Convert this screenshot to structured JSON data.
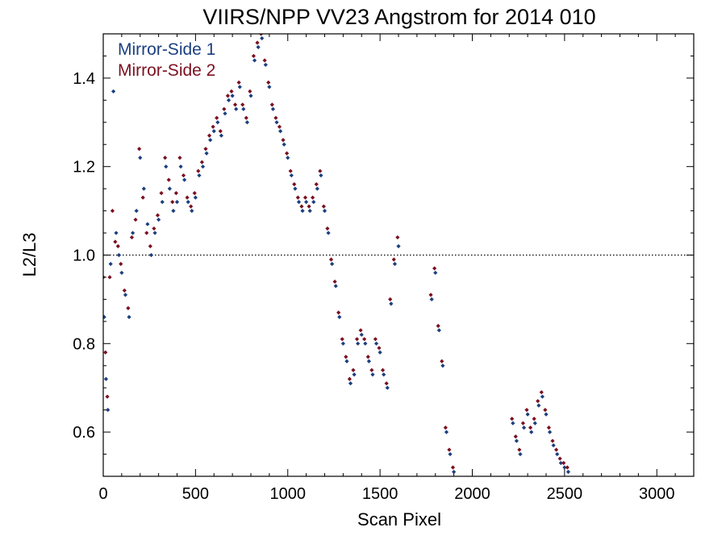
{
  "chart_data": {
    "type": "scatter",
    "title": "VIIRS/NPP VV23 Angstrom for 2014 010",
    "xlabel": "Scan Pixel",
    "ylabel": "L2/L3",
    "xlim": [
      0,
      3200
    ],
    "ylim": [
      0.5,
      1.5
    ],
    "xticks": [
      0,
      500,
      1000,
      1500,
      2000,
      2500,
      3000
    ],
    "yticks": [
      0.6,
      0.8,
      1.0,
      1.2,
      1.4
    ],
    "xtick_labels": [
      "0",
      "500",
      "1000",
      "1500",
      "2000",
      "2500",
      "3000"
    ],
    "ytick_labels": [
      "0.6",
      "0.8",
      "1.0",
      "1.2",
      "1.4"
    ],
    "reference_line": {
      "y": 1.0,
      "style": "dotted"
    },
    "grid": false,
    "legend": {
      "placement": "top-left",
      "style": "text-only"
    },
    "series": [
      {
        "name": "Mirror-Side 1",
        "color": "#1b3f7f",
        "points": [
          [
            5,
            0.86
          ],
          [
            15,
            0.72
          ],
          [
            25,
            0.65
          ],
          [
            40,
            0.98
          ],
          [
            55,
            1.37
          ],
          [
            70,
            1.05
          ],
          [
            85,
            1.0
          ],
          [
            100,
            0.96
          ],
          [
            120,
            0.91
          ],
          [
            140,
            0.86
          ],
          [
            160,
            1.05
          ],
          [
            180,
            1.1
          ],
          [
            200,
            1.22
          ],
          [
            220,
            1.15
          ],
          [
            240,
            1.07
          ],
          [
            260,
            1.0
          ],
          [
            280,
            1.05
          ],
          [
            300,
            1.08
          ],
          [
            320,
            1.12
          ],
          [
            340,
            1.2
          ],
          [
            360,
            1.15
          ],
          [
            380,
            1.1
          ],
          [
            400,
            1.12
          ],
          [
            420,
            1.2
          ],
          [
            440,
            1.17
          ],
          [
            460,
            1.12
          ],
          [
            480,
            1.1
          ],
          [
            500,
            1.13
          ],
          [
            520,
            1.18
          ],
          [
            540,
            1.2
          ],
          [
            560,
            1.23
          ],
          [
            580,
            1.26
          ],
          [
            600,
            1.28
          ],
          [
            620,
            1.3
          ],
          [
            640,
            1.27
          ],
          [
            660,
            1.32
          ],
          [
            680,
            1.35
          ],
          [
            700,
            1.36
          ],
          [
            720,
            1.33
          ],
          [
            740,
            1.38
          ],
          [
            760,
            1.33
          ],
          [
            780,
            1.3
          ],
          [
            800,
            1.36
          ],
          [
            820,
            1.44
          ],
          [
            840,
            1.47
          ],
          [
            860,
            1.49
          ],
          [
            880,
            1.43
          ],
          [
            900,
            1.38
          ],
          [
            920,
            1.33
          ],
          [
            940,
            1.3
          ],
          [
            960,
            1.28
          ],
          [
            980,
            1.25
          ],
          [
            1000,
            1.22
          ],
          [
            1020,
            1.18
          ],
          [
            1040,
            1.15
          ],
          [
            1060,
            1.12
          ],
          [
            1080,
            1.1
          ],
          [
            1100,
            1.12
          ],
          [
            1120,
            1.1
          ],
          [
            1140,
            1.12
          ],
          [
            1160,
            1.15
          ],
          [
            1180,
            1.18
          ],
          [
            1200,
            1.1
          ],
          [
            1220,
            1.05
          ],
          [
            1240,
            0.98
          ],
          [
            1260,
            0.93
          ],
          [
            1280,
            0.86
          ],
          [
            1300,
            0.8
          ],
          [
            1320,
            0.76
          ],
          [
            1340,
            0.71
          ],
          [
            1360,
            0.73
          ],
          [
            1380,
            0.8
          ],
          [
            1400,
            0.82
          ],
          [
            1420,
            0.8
          ],
          [
            1440,
            0.76
          ],
          [
            1460,
            0.73
          ],
          [
            1480,
            0.8
          ],
          [
            1500,
            0.78
          ],
          [
            1520,
            0.73
          ],
          [
            1540,
            0.7
          ],
          [
            1560,
            0.89
          ],
          [
            1580,
            0.98
          ],
          [
            1600,
            1.02
          ],
          [
            1780,
            0.9
          ],
          [
            1800,
            0.96
          ],
          [
            1820,
            0.83
          ],
          [
            1840,
            0.75
          ],
          [
            1860,
            0.6
          ],
          [
            1880,
            0.55
          ],
          [
            1900,
            0.51
          ],
          [
            2220,
            0.62
          ],
          [
            2240,
            0.58
          ],
          [
            2260,
            0.55
          ],
          [
            2280,
            0.61
          ],
          [
            2300,
            0.64
          ],
          [
            2320,
            0.6
          ],
          [
            2340,
            0.62
          ],
          [
            2360,
            0.66
          ],
          [
            2380,
            0.68
          ],
          [
            2400,
            0.64
          ],
          [
            2420,
            0.6
          ],
          [
            2440,
            0.57
          ],
          [
            2460,
            0.55
          ],
          [
            2480,
            0.53
          ],
          [
            2500,
            0.52
          ],
          [
            2520,
            0.51
          ]
        ]
      },
      {
        "name": "Mirror-Side 2",
        "color": "#7a1020",
        "points": [
          [
            0,
            0.95
          ],
          [
            12,
            0.78
          ],
          [
            22,
            0.68
          ],
          [
            35,
            0.95
          ],
          [
            50,
            1.1
          ],
          [
            65,
            1.03
          ],
          [
            80,
            1.02
          ],
          [
            95,
            0.98
          ],
          [
            115,
            0.92
          ],
          [
            135,
            0.88
          ],
          [
            155,
            1.04
          ],
          [
            175,
            1.08
          ],
          [
            195,
            1.24
          ],
          [
            215,
            1.13
          ],
          [
            235,
            1.05
          ],
          [
            255,
            1.02
          ],
          [
            275,
            1.06
          ],
          [
            295,
            1.09
          ],
          [
            315,
            1.14
          ],
          [
            335,
            1.22
          ],
          [
            355,
            1.17
          ],
          [
            375,
            1.12
          ],
          [
            395,
            1.14
          ],
          [
            415,
            1.22
          ],
          [
            435,
            1.18
          ],
          [
            455,
            1.13
          ],
          [
            475,
            1.11
          ],
          [
            495,
            1.14
          ],
          [
            515,
            1.19
          ],
          [
            535,
            1.21
          ],
          [
            555,
            1.24
          ],
          [
            575,
            1.27
          ],
          [
            595,
            1.29
          ],
          [
            615,
            1.31
          ],
          [
            635,
            1.28
          ],
          [
            655,
            1.33
          ],
          [
            675,
            1.36
          ],
          [
            695,
            1.37
          ],
          [
            715,
            1.34
          ],
          [
            735,
            1.39
          ],
          [
            755,
            1.34
          ],
          [
            775,
            1.31
          ],
          [
            795,
            1.37
          ],
          [
            815,
            1.45
          ],
          [
            835,
            1.48
          ],
          [
            855,
            1.5
          ],
          [
            875,
            1.44
          ],
          [
            895,
            1.39
          ],
          [
            915,
            1.34
          ],
          [
            935,
            1.31
          ],
          [
            955,
            1.29
          ],
          [
            975,
            1.26
          ],
          [
            995,
            1.23
          ],
          [
            1015,
            1.19
          ],
          [
            1035,
            1.16
          ],
          [
            1055,
            1.13
          ],
          [
            1075,
            1.11
          ],
          [
            1095,
            1.13
          ],
          [
            1115,
            1.11
          ],
          [
            1135,
            1.13
          ],
          [
            1155,
            1.16
          ],
          [
            1175,
            1.19
          ],
          [
            1195,
            1.11
          ],
          [
            1215,
            1.06
          ],
          [
            1235,
            0.99
          ],
          [
            1255,
            0.94
          ],
          [
            1275,
            0.87
          ],
          [
            1295,
            0.81
          ],
          [
            1315,
            0.77
          ],
          [
            1335,
            0.72
          ],
          [
            1355,
            0.74
          ],
          [
            1375,
            0.81
          ],
          [
            1395,
            0.83
          ],
          [
            1415,
            0.81
          ],
          [
            1435,
            0.77
          ],
          [
            1455,
            0.74
          ],
          [
            1475,
            0.81
          ],
          [
            1495,
            0.79
          ],
          [
            1515,
            0.74
          ],
          [
            1535,
            0.71
          ],
          [
            1555,
            0.9
          ],
          [
            1575,
            0.99
          ],
          [
            1595,
            1.04
          ],
          [
            1775,
            0.91
          ],
          [
            1795,
            0.97
          ],
          [
            1815,
            0.84
          ],
          [
            1835,
            0.76
          ],
          [
            1855,
            0.61
          ],
          [
            1875,
            0.56
          ],
          [
            1895,
            0.52
          ],
          [
            2215,
            0.63
          ],
          [
            2235,
            0.59
          ],
          [
            2255,
            0.56
          ],
          [
            2275,
            0.62
          ],
          [
            2295,
            0.65
          ],
          [
            2315,
            0.61
          ],
          [
            2335,
            0.63
          ],
          [
            2355,
            0.67
          ],
          [
            2375,
            0.69
          ],
          [
            2395,
            0.65
          ],
          [
            2415,
            0.61
          ],
          [
            2435,
            0.58
          ],
          [
            2455,
            0.56
          ],
          [
            2475,
            0.54
          ],
          [
            2495,
            0.53
          ],
          [
            2515,
            0.52
          ]
        ]
      }
    ]
  }
}
